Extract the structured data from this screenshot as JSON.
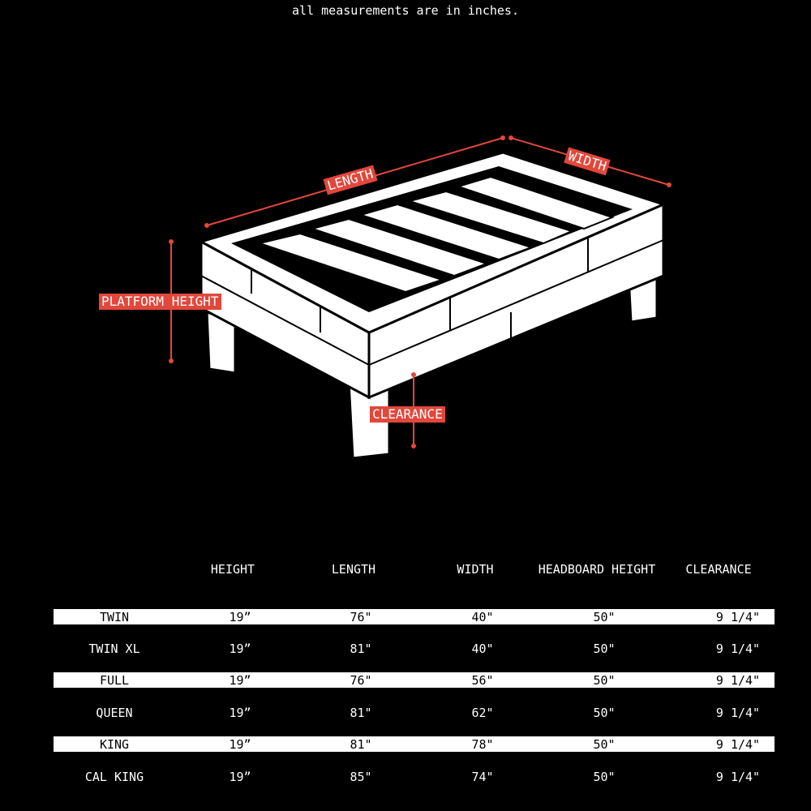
{
  "note": "all measurements are in inches.",
  "diagram_labels": {
    "length": "LENGTH",
    "width": "WIDTH",
    "platform_height": "PLATFORM HEIGHT",
    "clearance": "CLEARANCE"
  },
  "colors": {
    "label_bg": "#e2473c",
    "background": "#000000",
    "band": "#ffffff"
  },
  "table": {
    "headers": [
      "HEIGHT",
      "LENGTH",
      "WIDTH",
      "HEADBOARD HEIGHT",
      "CLEARANCE"
    ],
    "rows": [
      {
        "size": "TWIN",
        "height": "19”",
        "length": "76\"",
        "width": "40\"",
        "headboard": "50\"",
        "clearance": "9 1/4\""
      },
      {
        "size": "TWIN XL",
        "height": "19”",
        "length": "81\"",
        "width": "40\"",
        "headboard": "50\"",
        "clearance": "9 1/4\""
      },
      {
        "size": "FULL",
        "height": "19”",
        "length": "76\"",
        "width": "56\"",
        "headboard": "50\"",
        "clearance": "9 1/4\""
      },
      {
        "size": "QUEEN",
        "height": "19”",
        "length": "81\"",
        "width": "62\"",
        "headboard": "50\"",
        "clearance": "9 1/4\""
      },
      {
        "size": "KING",
        "height": "19”",
        "length": "81\"",
        "width": "78\"",
        "headboard": "50\"",
        "clearance": "9 1/4\""
      },
      {
        "size": "CAL KING",
        "height": "19”",
        "length": "85\"",
        "width": "74\"",
        "headboard": "50\"",
        "clearance": "9 1/4\""
      }
    ]
  }
}
